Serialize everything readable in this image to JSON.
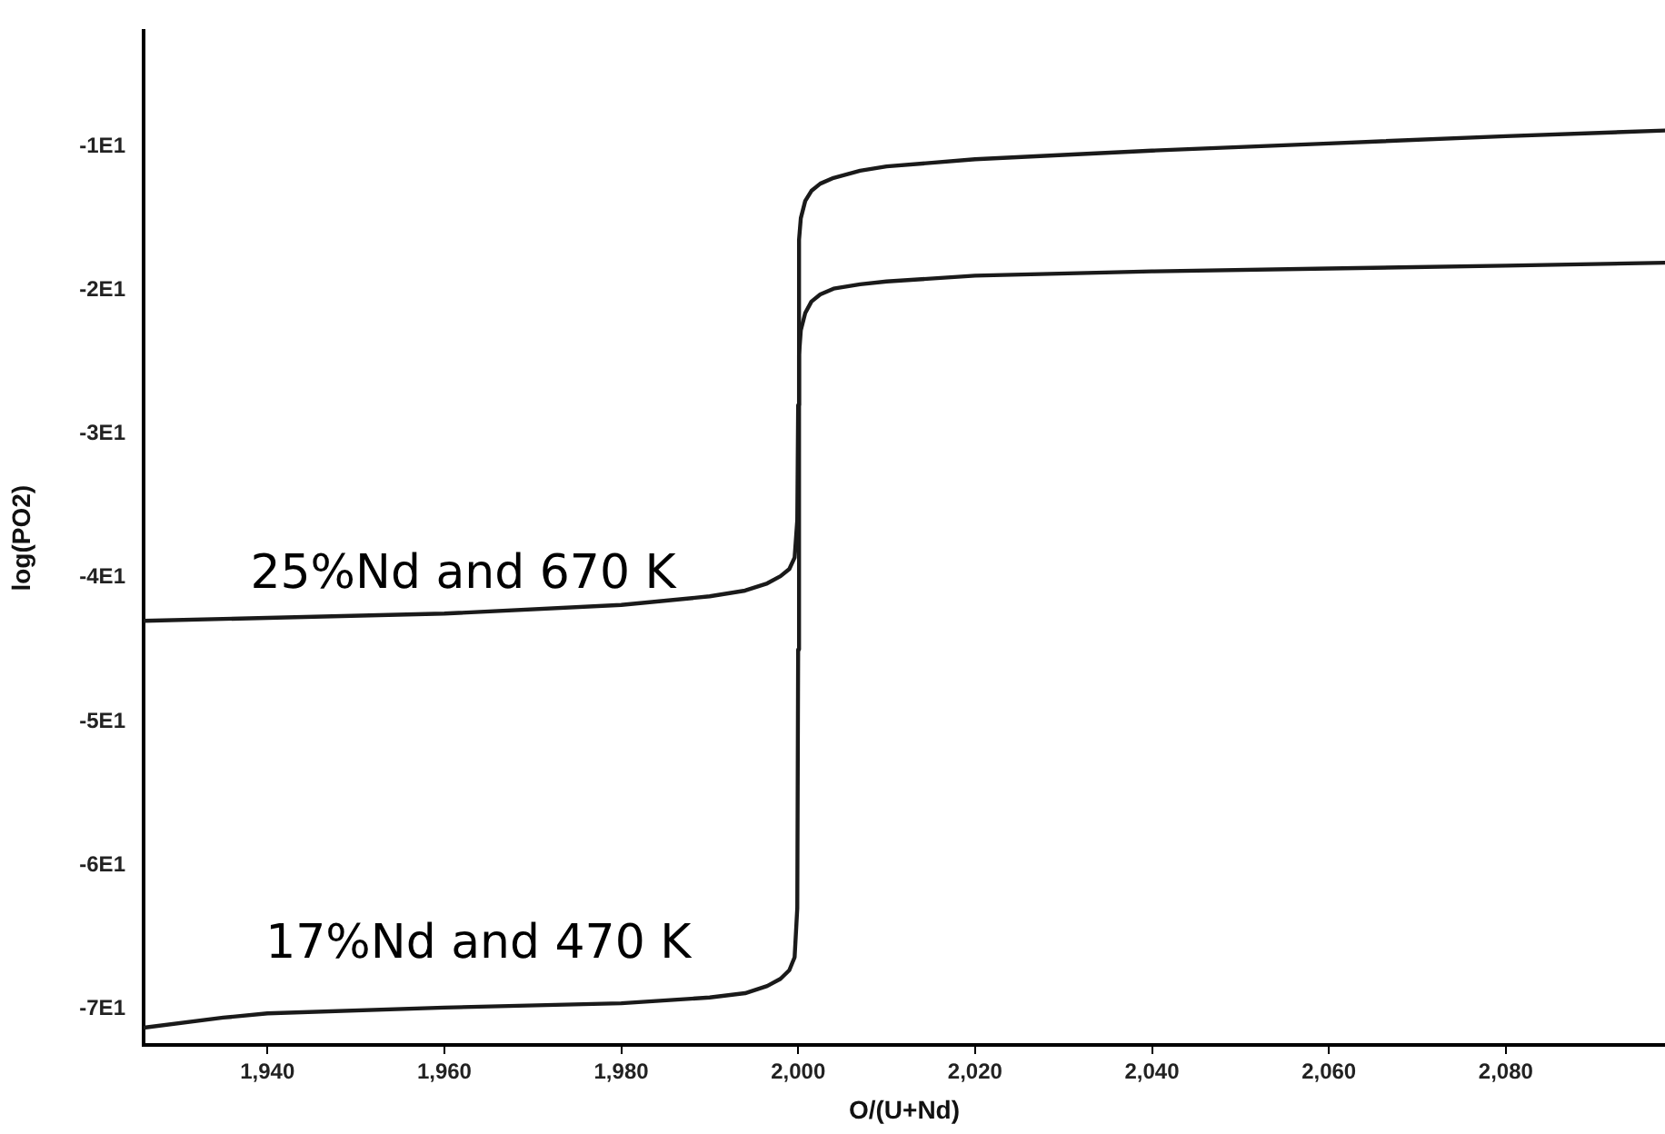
{
  "chart_data": {
    "type": "line",
    "xlabel": "O/(U+Nd)",
    "ylabel": "log(PO2)",
    "xlim": [
      1926,
      2098
    ],
    "xticks": [
      {
        "value": 1940,
        "label": "1,940"
      },
      {
        "value": 1960,
        "label": "1,960"
      },
      {
        "value": 1980,
        "label": "1,980"
      },
      {
        "value": 2000,
        "label": "2,000"
      },
      {
        "value": 2020,
        "label": "2,020"
      },
      {
        "value": 2040,
        "label": "2,040"
      },
      {
        "value": 2060,
        "label": "2,060"
      },
      {
        "value": 2080,
        "label": "2,080"
      }
    ],
    "ylim": [
      -72.5,
      -2
    ],
    "yticks": [
      {
        "value": -10,
        "label": "-1E1"
      },
      {
        "value": -20,
        "label": "-2E1"
      },
      {
        "value": -30,
        "label": "-3E1"
      },
      {
        "value": -40,
        "label": "-4E1"
      },
      {
        "value": -50,
        "label": "-5E1"
      },
      {
        "value": -60,
        "label": "-6E1"
      },
      {
        "value": -70,
        "label": "-7E1"
      }
    ],
    "grid": false,
    "legend": false,
    "marker": "none",
    "line_style": "solid",
    "series": [
      {
        "color": "#1a1a1a",
        "x": [
          1926,
          1940,
          1960,
          1980,
          1990,
          1994,
          1996.5,
          1998,
          1999,
          1999.6,
          1999.9,
          2000,
          2000.1,
          2000.3,
          2000.8,
          2001.5,
          2002.5,
          2004,
          2007,
          2010,
          2020,
          2040,
          2060,
          2080,
          2098
        ],
        "values": [
          -43.0,
          -42.8,
          -42.5,
          -41.9,
          -41.3,
          -40.9,
          -40.4,
          -39.9,
          -39.4,
          -38.6,
          -36,
          -28,
          -16.5,
          -15.0,
          -13.8,
          -13.1,
          -12.6,
          -12.2,
          -11.7,
          -11.4,
          -10.9,
          -10.3,
          -9.8,
          -9.3,
          -8.9
        ]
      },
      {
        "color": "#1a1a1a",
        "x": [
          1926,
          1935,
          1940,
          1960,
          1980,
          1990,
          1994,
          1996.5,
          1998,
          1999,
          1999.6,
          1999.9,
          2000,
          2000.1,
          2000.3,
          2000.8,
          2001.5,
          2002.5,
          2004,
          2007,
          2010,
          2020,
          2040,
          2060,
          2080,
          2098
        ],
        "values": [
          -71.3,
          -70.6,
          -70.3,
          -69.9,
          -69.6,
          -69.2,
          -68.9,
          -68.4,
          -67.9,
          -67.3,
          -66.4,
          -63,
          -45,
          -24.5,
          -22.8,
          -21.6,
          -20.8,
          -20.3,
          -19.9,
          -19.6,
          -19.4,
          -19.0,
          -18.7,
          -18.5,
          -18.3,
          -18.1
        ]
      }
    ],
    "annotations": [
      "25%Nd and 670 K",
      "17%Nd and 470 K"
    ]
  }
}
